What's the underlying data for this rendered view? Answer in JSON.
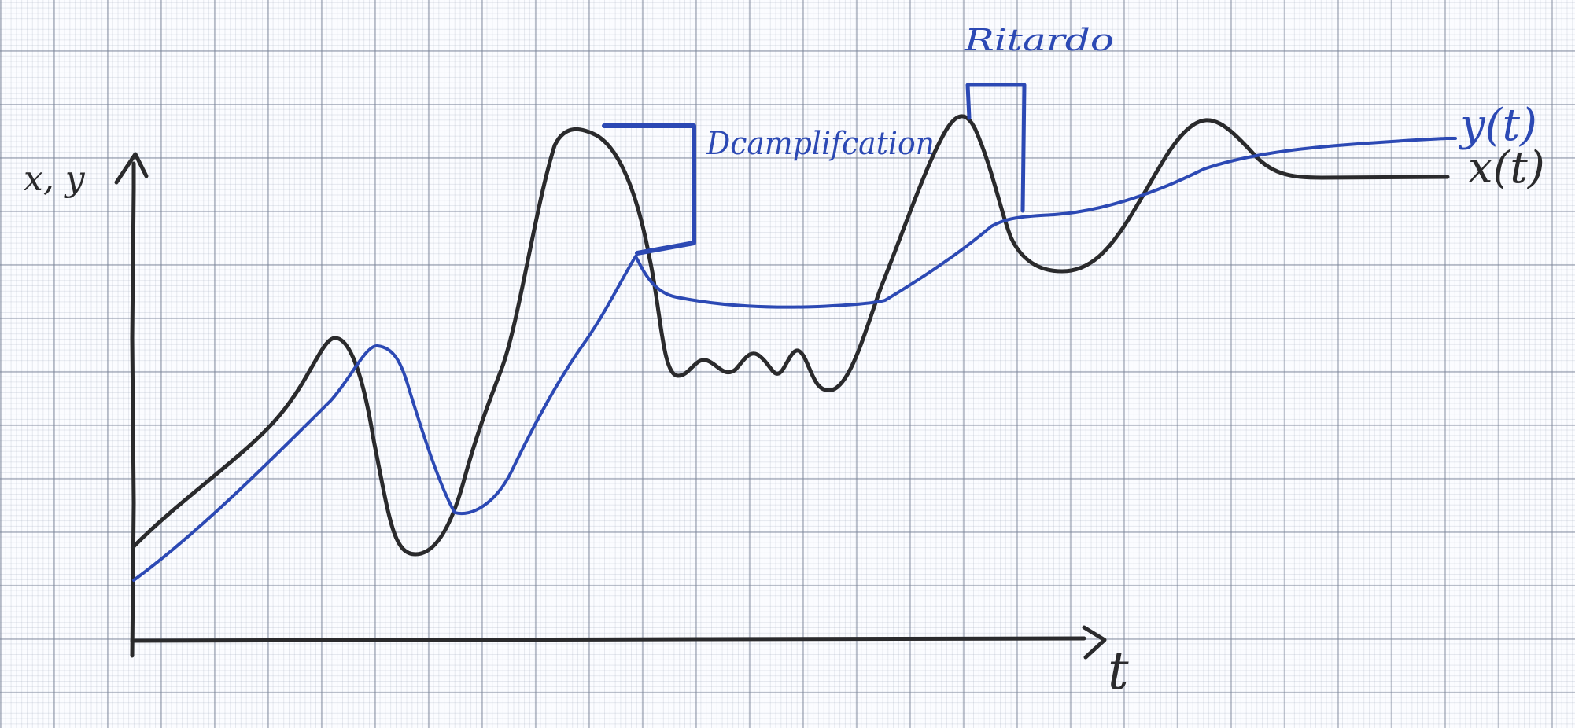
{
  "diagram": {
    "y_axis_label": "x, y",
    "x_axis_label": "t",
    "annotations": {
      "delay": "Ritardo",
      "damping": "Dcamplifcation"
    },
    "curve_labels": {
      "blue": "y(t)",
      "black": "x(t)"
    },
    "colors": {
      "black_ink": "#2a2a2c",
      "blue_ink": "#2c49b4"
    }
  }
}
